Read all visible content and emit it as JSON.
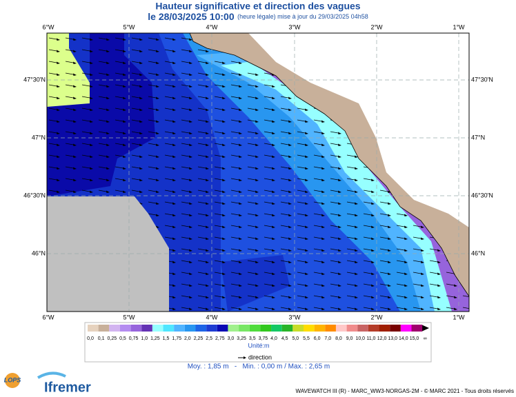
{
  "header": {
    "title": "Hauteur significative et direction des vagues",
    "date": "le 28/03/2025 10:00",
    "update": "(heure légale) mise à jour du 29/03/2025 04h58"
  },
  "map": {
    "longitudes": [
      "6°W",
      "5°W",
      "4°W",
      "3°W",
      "2°W",
      "1°W"
    ],
    "latitudes": [
      "47°30'N",
      "47°N",
      "46°30'N",
      "46°N"
    ]
  },
  "legend": {
    "labels": [
      "0,0",
      "0,1",
      "0,25",
      "0,5",
      "0,75",
      "1,0",
      "1,25",
      "1,5",
      "1,75",
      "2,0",
      "2,25",
      "2,5",
      "2,75",
      "3,0",
      "3,25",
      "3,5",
      "3,75",
      "4,0",
      "4,5",
      "5,0",
      "5,5",
      "6,0",
      "7,0",
      "8,0",
      "9,0",
      "10,0",
      "11,0",
      "12,0",
      "13,0",
      "14,0",
      "15,0",
      "∞"
    ],
    "colors": [
      "#e6d2be",
      "#c8b09a",
      "#d2b4f0",
      "#b48cf0",
      "#9664dc",
      "#6432b4",
      "#96ffff",
      "#50e6ff",
      "#50b4ff",
      "#2896f0",
      "#1e64e6",
      "#1e3cd2",
      "#0a0ab4",
      "#a0f08c",
      "#78e664",
      "#50dc3c",
      "#32c81e",
      "#14c864",
      "#28b428",
      "#c8dc28",
      "#ffdc00",
      "#ffb400",
      "#ff8c00",
      "#ffc8c8",
      "#f08c8c",
      "#c86464",
      "#b43c28",
      "#a01e00",
      "#780000",
      "#ff00ff",
      "#a0006e"
    ],
    "unit": "Unité:m",
    "direction": "direction"
  },
  "stats": "Moy. : 1,85 m   -   Min. : 0,00 m / Max. : 2,65 m",
  "logos": {
    "lops": "LOPS",
    "ifremer": "Ifremer"
  },
  "footer": "WAVEWATCH III (R) - MARC_WW3-NORGAS-2M - © MARC 2021 - Tous droits réservés"
}
